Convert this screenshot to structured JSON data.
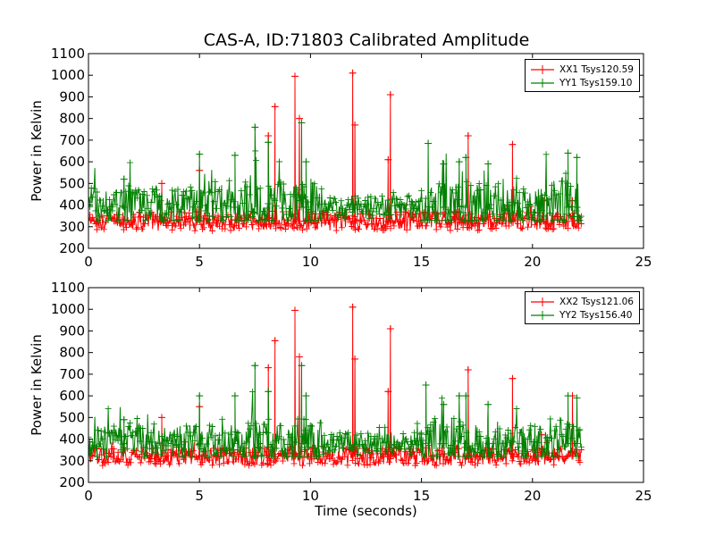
{
  "chart_data": [
    {
      "type": "line",
      "title": "CAS-A, ID:71803 Calibrated Amplitude",
      "xlabel": "",
      "ylabel": "Power in Kelvin",
      "xlim": [
        0,
        25
      ],
      "ylim": [
        200,
        1100
      ],
      "xticks": [
        "0",
        "5",
        "10",
        "15",
        "20",
        "25"
      ],
      "yticks": [
        "200",
        "300",
        "400",
        "500",
        "600",
        "700",
        "800",
        "900",
        "1000",
        "1100"
      ],
      "legend_position": "top-right",
      "marker": "+",
      "x_extent": [
        0,
        22.2
      ],
      "series": [
        {
          "name": "XX1 Tsys120.59",
          "color": "#ff0000",
          "baseline": 325,
          "noise_band": [
            290,
            380
          ],
          "peaks": [
            [
              3.3,
              500
            ],
            [
              5.0,
              560
            ],
            [
              8.1,
              720
            ],
            [
              8.4,
              855
            ],
            [
              9.3,
              995
            ],
            [
              9.5,
              800
            ],
            [
              11.9,
              1010
            ],
            [
              12.0,
              770
            ],
            [
              13.5,
              610
            ],
            [
              13.6,
              910
            ],
            [
              17.1,
              720
            ],
            [
              19.1,
              680
            ],
            [
              20.5,
              420
            ],
            [
              21.8,
              420
            ]
          ]
        },
        {
          "name": "YY1 Tsys159.10",
          "color": "#008000",
          "baseline": 390,
          "noise_band": [
            340,
            520
          ],
          "peaks": [
            [
              1.6,
              520
            ],
            [
              5.0,
              635
            ],
            [
              6.6,
              630
            ],
            [
              7.5,
              760
            ],
            [
              8.1,
              690
            ],
            [
              9.6,
              780
            ],
            [
              9.8,
              600
            ],
            [
              15.3,
              685
            ],
            [
              16.0,
              590
            ],
            [
              16.7,
              600
            ],
            [
              17.0,
              620
            ],
            [
              18.0,
              590
            ],
            [
              21.6,
              640
            ],
            [
              22.0,
              620
            ]
          ]
        }
      ]
    },
    {
      "type": "line",
      "title": "",
      "xlabel": "Time (seconds)",
      "ylabel": "Power in Kelvin",
      "xlim": [
        0,
        25
      ],
      "ylim": [
        200,
        1100
      ],
      "xticks": [
        "0",
        "5",
        "10",
        "15",
        "20",
        "25"
      ],
      "yticks": [
        "200",
        "300",
        "400",
        "500",
        "600",
        "700",
        "800",
        "900",
        "1000",
        "1100"
      ],
      "legend_position": "top-right",
      "marker": "+",
      "x_extent": [
        0,
        22.2
      ],
      "series": [
        {
          "name": "XX2 Tsys121.06",
          "color": "#ff0000",
          "baseline": 320,
          "noise_band": [
            285,
            370
          ],
          "peaks": [
            [
              3.3,
              500
            ],
            [
              5.0,
              550
            ],
            [
              8.1,
              730
            ],
            [
              8.4,
              855
            ],
            [
              9.3,
              995
            ],
            [
              9.5,
              780
            ],
            [
              11.9,
              1010
            ],
            [
              12.0,
              770
            ],
            [
              13.5,
              620
            ],
            [
              13.6,
              910
            ],
            [
              17.1,
              720
            ],
            [
              19.1,
              680
            ],
            [
              20.4,
              420
            ],
            [
              21.8,
              600
            ]
          ]
        },
        {
          "name": "YY2 Tsys156.40",
          "color": "#008000",
          "baseline": 380,
          "noise_band": [
            330,
            500
          ],
          "peaks": [
            [
              1.6,
              490
            ],
            [
              5.0,
              600
            ],
            [
              6.6,
              600
            ],
            [
              7.5,
              740
            ],
            [
              8.1,
              620
            ],
            [
              9.6,
              740
            ],
            [
              9.8,
              600
            ],
            [
              15.2,
              650
            ],
            [
              16.0,
              560
            ],
            [
              16.7,
              600
            ],
            [
              17.0,
              600
            ],
            [
              18.0,
              560
            ],
            [
              21.6,
              600
            ],
            [
              22.0,
              590
            ]
          ]
        }
      ]
    }
  ]
}
